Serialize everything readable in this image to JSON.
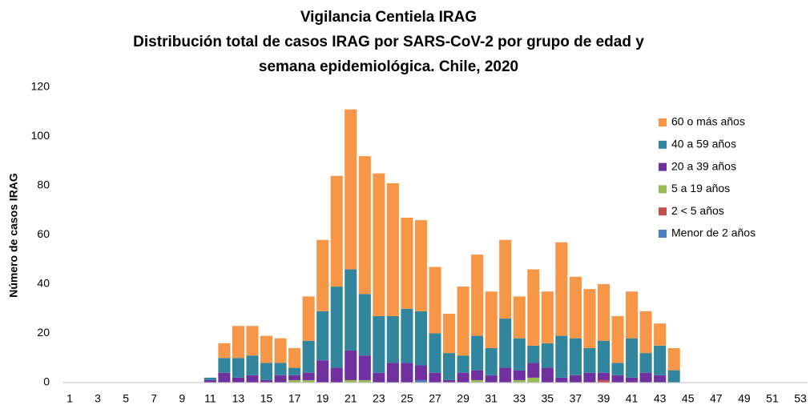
{
  "chart_data": {
    "type": "bar",
    "stacked": true,
    "title": [
      "Vigilancia Centiela IRAG",
      "Distribución total  de casos IRAG  por SARS-CoV-2 por grupo de edad y",
      "semana epidemiológica.  Chile, 2020"
    ],
    "y_label": "Número de casos IRAG",
    "categories": [
      1,
      null,
      3,
      null,
      5,
      null,
      7,
      null,
      9,
      null,
      11,
      null,
      13,
      null,
      15,
      null,
      17,
      null,
      19,
      null,
      21,
      null,
      23,
      null,
      25,
      null,
      27,
      null,
      29,
      null,
      31,
      null,
      33,
      null,
      35,
      null,
      37,
      null,
      39,
      null,
      41,
      null,
      43,
      null,
      45,
      null,
      47,
      null,
      49,
      null,
      51,
      null,
      53
    ],
    "ylim": [
      0,
      120
    ],
    "yticks": [
      0,
      20,
      40,
      60,
      80,
      100,
      120
    ],
    "grid": false,
    "legend": "right",
    "series": [
      {
        "name": "Menor de 2 años",
        "color": "#4a7ebb",
        "values": [
          0,
          0,
          0,
          0,
          0,
          0,
          0,
          0,
          0,
          0,
          0,
          0,
          0,
          0,
          0,
          0,
          0,
          0,
          0,
          0,
          0,
          0,
          0,
          0,
          0,
          1,
          0,
          0,
          0,
          0,
          0,
          0,
          0,
          0,
          0,
          0,
          0,
          0,
          0,
          0,
          0,
          0,
          0,
          0,
          0,
          0,
          0,
          0,
          0,
          0,
          0,
          0,
          0
        ]
      },
      {
        "name": "2 < 5 años",
        "color": "#c0504d",
        "values": [
          0,
          0,
          0,
          0,
          0,
          0,
          0,
          0,
          0,
          0,
          0,
          0,
          0,
          0,
          0,
          0,
          0,
          0,
          0,
          0,
          0,
          0,
          0,
          0,
          0,
          0,
          0,
          0,
          0,
          0,
          0,
          0,
          0,
          0,
          0,
          0,
          0,
          0,
          1,
          0,
          0,
          0,
          0,
          0,
          0,
          0,
          0,
          0,
          0,
          0,
          0,
          0,
          0
        ]
      },
      {
        "name": "5 a 19 años",
        "color": "#9bbb59",
        "values": [
          0,
          0,
          0,
          0,
          0,
          0,
          0,
          0,
          0,
          0,
          0,
          0,
          0,
          0,
          0,
          0,
          1,
          1,
          0,
          0,
          1,
          1,
          0,
          0,
          0,
          0,
          0,
          0,
          0,
          1,
          0,
          0,
          1,
          2,
          0,
          0,
          0,
          0,
          0,
          0,
          0,
          0,
          0,
          0,
          0,
          0,
          0,
          0,
          0,
          0,
          0,
          0,
          0
        ]
      },
      {
        "name": "20 a 39 años",
        "color": "#7030a0",
        "values": [
          0,
          0,
          0,
          0,
          0,
          0,
          0,
          0,
          0,
          0,
          1,
          4,
          2,
          3,
          1,
          3,
          2,
          3,
          9,
          6,
          12,
          10,
          4,
          8,
          8,
          6,
          4,
          1,
          4,
          4,
          3,
          6,
          4,
          6,
          6,
          2,
          3,
          4,
          3,
          3,
          2,
          4,
          3,
          0,
          0,
          0,
          0,
          0,
          0,
          0,
          0,
          0,
          0
        ]
      },
      {
        "name": "40 a 59 años",
        "color": "#31859c",
        "values": [
          0,
          0,
          0,
          0,
          0,
          0,
          0,
          0,
          0,
          0,
          1,
          6,
          8,
          8,
          7,
          5,
          3,
          13,
          20,
          33,
          33,
          25,
          23,
          19,
          22,
          22,
          16,
          11,
          7,
          14,
          11,
          20,
          13,
          7,
          10,
          17,
          15,
          10,
          13,
          5,
          16,
          8,
          12,
          5,
          0,
          0,
          0,
          0,
          0,
          0,
          0,
          0,
          0
        ]
      },
      {
        "name": "60 o más años",
        "color": "#f79646",
        "values": [
          0,
          0,
          0,
          0,
          0,
          0,
          0,
          0,
          0,
          0,
          0,
          6,
          13,
          12,
          11,
          10,
          8,
          18,
          29,
          45,
          65,
          56,
          58,
          54,
          37,
          37,
          27,
          16,
          28,
          33,
          23,
          32,
          17,
          31,
          21,
          38,
          25,
          24,
          23,
          19,
          19,
          17,
          9,
          9,
          0,
          0,
          0,
          0,
          0,
          0,
          0,
          0,
          0
        ]
      }
    ]
  }
}
